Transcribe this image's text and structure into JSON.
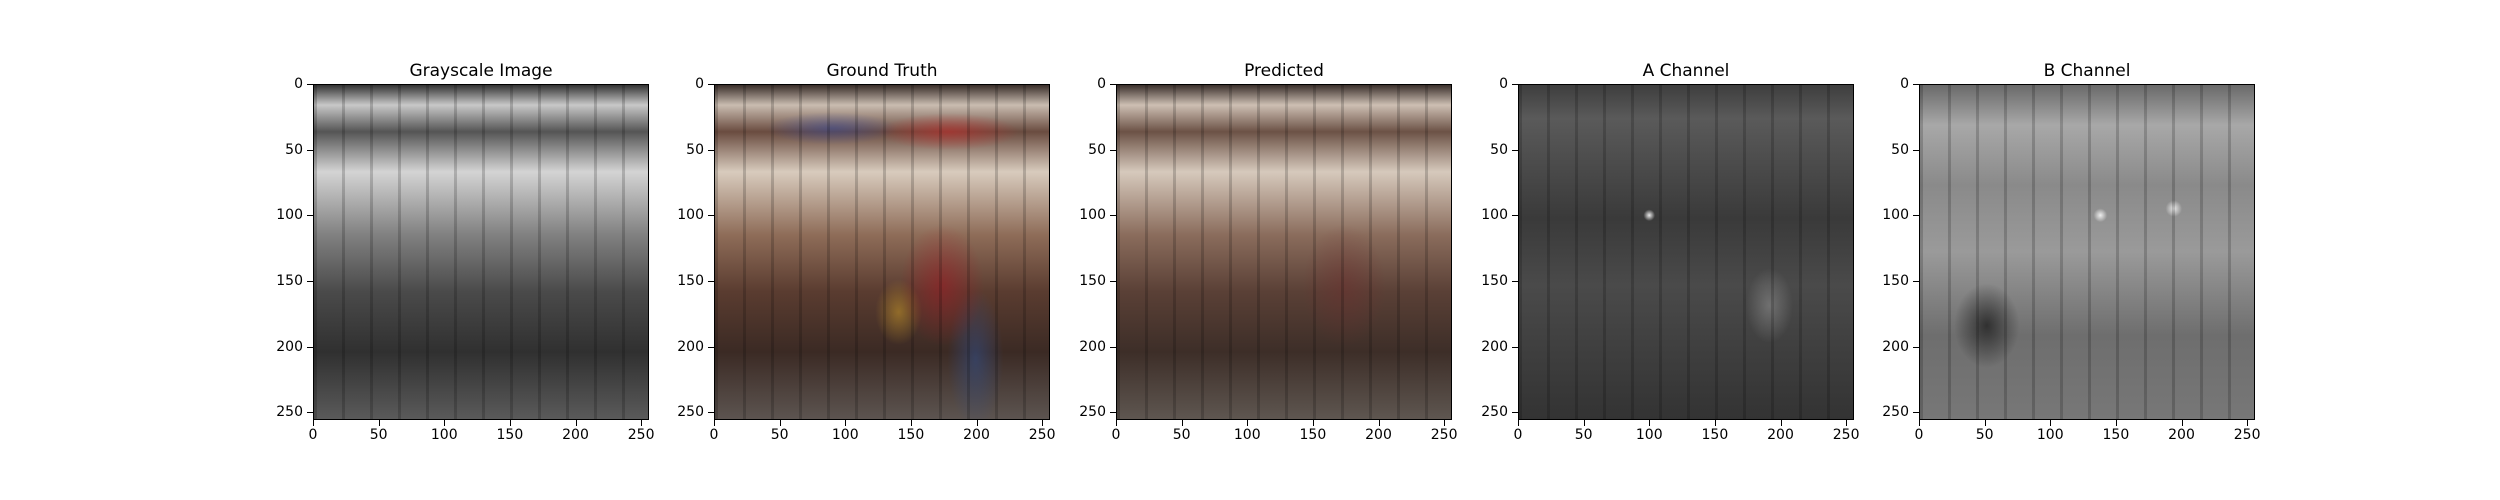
{
  "panels": [
    {
      "title": "Grayscale Image",
      "kind": "gray"
    },
    {
      "title": "Ground Truth",
      "kind": "color"
    },
    {
      "title": "Predicted",
      "kind": "pred"
    },
    {
      "title": "A Channel",
      "kind": "a"
    },
    {
      "title": "B Channel",
      "kind": "b"
    }
  ],
  "axis": {
    "x_ticks": [
      "0",
      "50",
      "100",
      "150",
      "200",
      "250"
    ],
    "y_ticks": [
      "0",
      "50",
      "100",
      "150",
      "200",
      "250"
    ],
    "range": [
      0,
      256
    ]
  }
}
